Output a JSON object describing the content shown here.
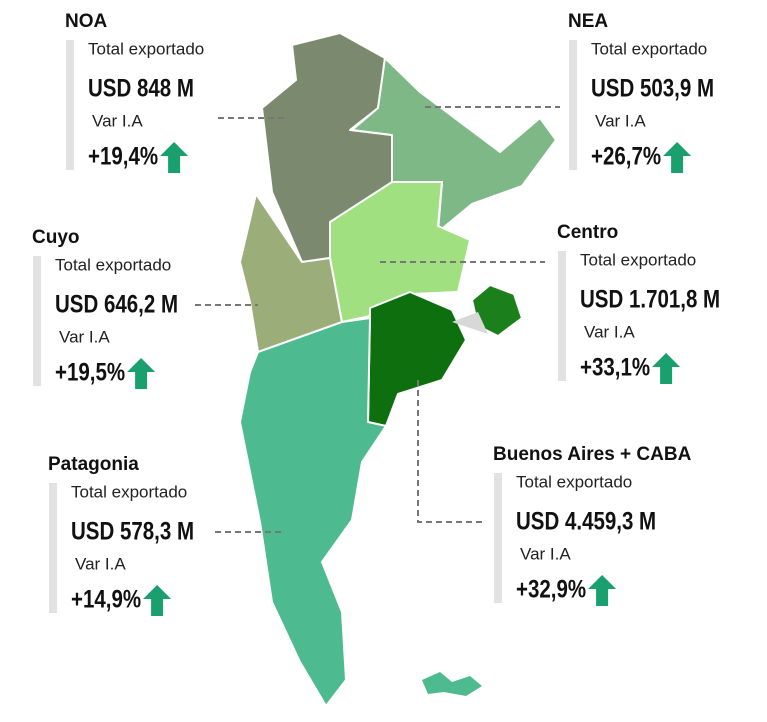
{
  "regions": [
    {
      "name": "NOA",
      "total_label": "Total exportado",
      "total": "USD 848 M",
      "var_label": "Var I.A",
      "var": "+19,4%"
    },
    {
      "name": "NEA",
      "total_label": "Total exportado",
      "total": "USD 503,9 M",
      "var_label": "Var I.A",
      "var": "+26,7%"
    },
    {
      "name": "Cuyo",
      "total_label": "Total exportado",
      "total": "USD  646,2 M",
      "var_label": "Var I.A",
      "var": "+19,5%"
    },
    {
      "name": "Centro",
      "total_label": "Total exportado",
      "total": "USD 1.701,8 M",
      "var_label": "Var I.A",
      "var": "+33,1%"
    },
    {
      "name": "Patagonia",
      "total_label": "Total exportado",
      "total": "USD 578,3 M",
      "var_label": "Var I.A",
      "var": "+14,9%"
    },
    {
      "name": "Buenos Aires + CABA",
      "total_label": "Total exportado",
      "total": "USD 4.459,3 M",
      "var_label": "Var I.A",
      "var": "+32,9%"
    }
  ]
}
